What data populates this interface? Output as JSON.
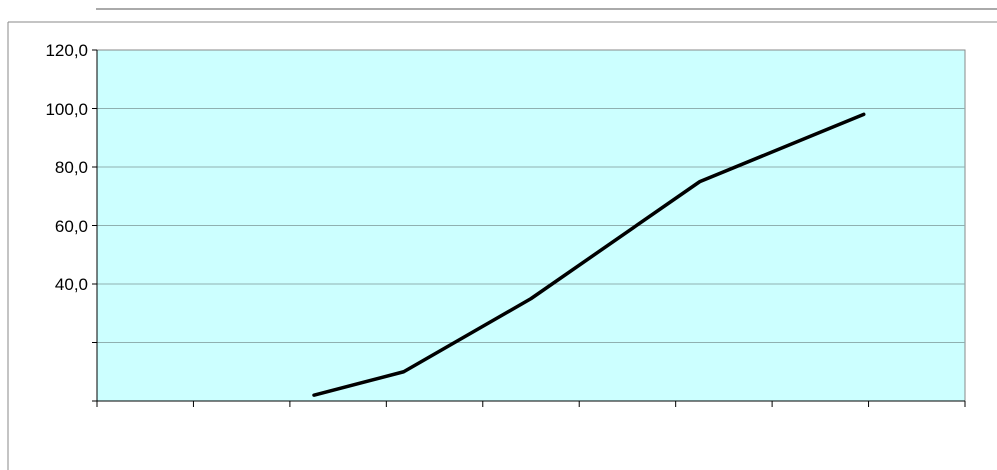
{
  "chart_data": {
    "type": "line",
    "y_ticks": [
      "120,0",
      "100,0",
      "80,0",
      "60,0",
      "40,0"
    ],
    "ylim": [
      0,
      120
    ],
    "x_category_count": 9,
    "grid": "horizontal",
    "colors": {
      "plot_background": "#ccffff",
      "gridline": "#8fb0b0",
      "line": "#000000"
    },
    "series": [
      {
        "x": [
          2.25,
          3.18,
          4.5,
          6.25,
          7.95
        ],
        "values": [
          2,
          10,
          35,
          75,
          98
        ]
      }
    ]
  }
}
